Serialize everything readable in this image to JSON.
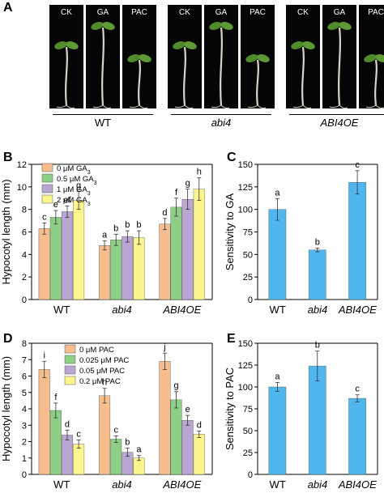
{
  "panel_labels": {
    "a": "A",
    "b": "B",
    "c": "C",
    "d": "D",
    "e": "E"
  },
  "photo": {
    "groups": [
      {
        "name": "WT",
        "italic": false,
        "tiles": [
          "CK",
          "GA",
          "PAC"
        ]
      },
      {
        "name": "abi4",
        "italic": true,
        "tiles": [
          "CK",
          "GA",
          "PAC"
        ]
      },
      {
        "name": "ABI4OE",
        "italic": true,
        "tiles": [
          "CK",
          "GA",
          "PAC"
        ]
      }
    ]
  },
  "chart_data": [
    {
      "id": "B",
      "type": "bar",
      "title": "",
      "xlabel": "",
      "ylabel": "Hypocotyl length (mm)",
      "ylim": [
        0,
        12
      ],
      "yticks": [
        "0",
        "2",
        "4",
        "6",
        "8",
        "10",
        "12"
      ],
      "categories": [
        "WT",
        "abi4",
        "ABI4OE"
      ],
      "categories_italic": [
        false,
        true,
        true
      ],
      "legend_position": "top-left",
      "series": [
        {
          "name": "0 μM GA",
          "sub": "3",
          "color": "#f6bd8f",
          "values": [
            6.3,
            4.8,
            6.7
          ],
          "errors": [
            0.5,
            0.4,
            0.5
          ],
          "letters": [
            "c",
            "a",
            "d"
          ]
        },
        {
          "name": "0.5 μM GA",
          "sub": "3",
          "color": "#8fce86",
          "values": [
            7.3,
            5.3,
            8.2
          ],
          "errors": [
            0.6,
            0.5,
            0.8
          ],
          "letters": [
            "e",
            "b",
            "f"
          ]
        },
        {
          "name": "1 μM GA",
          "sub": "3",
          "color": "#b9a6d2",
          "values": [
            7.8,
            5.6,
            8.9
          ],
          "errors": [
            0.5,
            0.5,
            0.9
          ],
          "letters": [
            "ef",
            "b",
            "g"
          ]
        },
        {
          "name": "2 μM GA",
          "sub": "3",
          "color": "#fcf58e",
          "values": [
            8.8,
            5.5,
            9.8
          ],
          "errors": [
            0.8,
            0.6,
            1.0
          ],
          "letters": [
            "g",
            "b",
            "h"
          ]
        }
      ]
    },
    {
      "id": "C",
      "type": "bar",
      "title": "",
      "xlabel": "",
      "ylabel": "Sensitivity to GA",
      "ylim": [
        0,
        150
      ],
      "yticks": [
        "0",
        "25",
        "50",
        "75",
        "100",
        "125",
        "150"
      ],
      "categories": [
        "WT",
        "abi4",
        "ABI4OE"
      ],
      "categories_italic": [
        false,
        true,
        true
      ],
      "series": [
        {
          "name": "",
          "color": "#4fb6ee",
          "values": [
            100,
            55,
            130
          ],
          "errors": [
            12,
            2,
            13
          ],
          "letters": [
            "a",
            "b",
            "c"
          ]
        }
      ]
    },
    {
      "id": "D",
      "type": "bar",
      "title": "",
      "xlabel": "",
      "ylabel": "Hypocotyl length (mm)",
      "ylim": [
        0,
        8
      ],
      "yticks": [
        "0",
        "1",
        "2",
        "3",
        "4",
        "5",
        "6",
        "7",
        "8"
      ],
      "categories": [
        "WT",
        "abi4",
        "ABI4OE"
      ],
      "categories_italic": [
        false,
        true,
        true
      ],
      "legend_position": "top-center",
      "series": [
        {
          "name": "0 μM PAC",
          "sub": "",
          "color": "#f6bd8f",
          "values": [
            6.4,
            4.8,
            6.9
          ],
          "errors": [
            0.5,
            0.45,
            0.5
          ],
          "letters": [
            "i",
            "h",
            "j"
          ]
        },
        {
          "name": "0.025 μM PAC",
          "sub": "",
          "color": "#8fce86",
          "values": [
            3.9,
            2.15,
            4.55
          ],
          "errors": [
            0.45,
            0.2,
            0.5
          ],
          "letters": [
            "f",
            "c",
            "g"
          ]
        },
        {
          "name": "0.05 μM PAC",
          "sub": "",
          "color": "#b9a6d2",
          "values": [
            2.4,
            1.35,
            3.3
          ],
          "errors": [
            0.3,
            0.25,
            0.3
          ],
          "letters": [
            "d",
            "b",
            "e"
          ]
        },
        {
          "name": "0.2 μM PAC",
          "sub": "",
          "color": "#fcf58e",
          "values": [
            1.85,
            1.0,
            2.45
          ],
          "errors": [
            0.25,
            0.15,
            0.2
          ],
          "letters": [
            "c",
            "a",
            "d"
          ]
        }
      ]
    },
    {
      "id": "E",
      "type": "bar",
      "title": "",
      "xlabel": "",
      "ylabel": "Sensitivity to PAC",
      "ylim": [
        0,
        150
      ],
      "yticks": [
        "0",
        "25",
        "50",
        "75",
        "100",
        "125",
        "150"
      ],
      "categories": [
        "WT",
        "abi4",
        "ABI4OE"
      ],
      "categories_italic": [
        false,
        true,
        true
      ],
      "series": [
        {
          "name": "",
          "color": "#4fb6ee",
          "values": [
            100,
            124,
            87
          ],
          "errors": [
            5,
            17,
            4
          ],
          "letters": [
            "a",
            "b",
            "c"
          ]
        }
      ]
    }
  ]
}
